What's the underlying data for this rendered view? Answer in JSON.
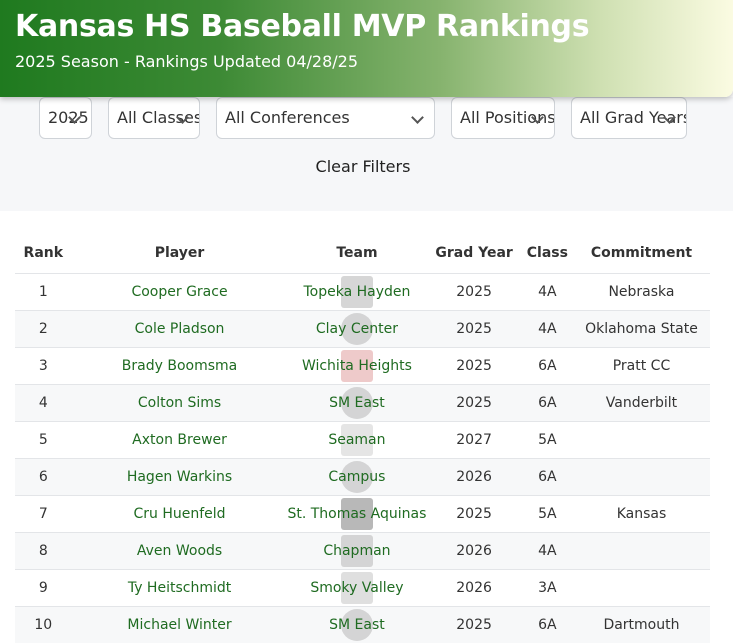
{
  "header": {
    "title": "Kansas HS Baseball MVP Rankings",
    "subtitle": "2025 Season - Rankings Updated 04/28/25"
  },
  "filters": {
    "year": "2025",
    "classes": "All Classes",
    "conferences": "All Conferences",
    "positions": "All Positions",
    "grad_years": "All Grad Years",
    "clear_label": "Clear Filters"
  },
  "table": {
    "columns": [
      "Rank",
      "Player",
      "Team",
      "Grad Year",
      "Class",
      "Commitment"
    ],
    "rows": [
      {
        "rank": "1",
        "player": "Cooper Grace",
        "team": "Topeka Hayden",
        "grad_year": "2025",
        "class": "4A",
        "commitment": "Nebraska"
      },
      {
        "rank": "2",
        "player": "Cole Pladson",
        "team": "Clay Center",
        "grad_year": "2025",
        "class": "4A",
        "commitment": "Oklahoma State"
      },
      {
        "rank": "3",
        "player": "Brady Boomsma",
        "team": "Wichita Heights",
        "grad_year": "2025",
        "class": "6A",
        "commitment": "Pratt CC"
      },
      {
        "rank": "4",
        "player": "Colton Sims",
        "team": "SM East",
        "grad_year": "2025",
        "class": "6A",
        "commitment": "Vanderbilt"
      },
      {
        "rank": "5",
        "player": "Axton Brewer",
        "team": "Seaman",
        "grad_year": "2027",
        "class": "5A",
        "commitment": ""
      },
      {
        "rank": "6",
        "player": "Hagen Warkins",
        "team": "Campus",
        "grad_year": "2026",
        "class": "6A",
        "commitment": ""
      },
      {
        "rank": "7",
        "player": "Cru Huenfeld",
        "team": "St. Thomas Aquinas",
        "grad_year": "2025",
        "class": "5A",
        "commitment": "Kansas"
      },
      {
        "rank": "8",
        "player": "Aven Woods",
        "team": "Chapman",
        "grad_year": "2026",
        "class": "4A",
        "commitment": ""
      },
      {
        "rank": "9",
        "player": "Ty Heitschmidt",
        "team": "Smoky Valley",
        "grad_year": "2026",
        "class": "3A",
        "commitment": ""
      },
      {
        "rank": "10",
        "player": "Michael Winter",
        "team": "SM East",
        "grad_year": "2025",
        "class": "6A",
        "commitment": "Dartmouth"
      }
    ]
  }
}
